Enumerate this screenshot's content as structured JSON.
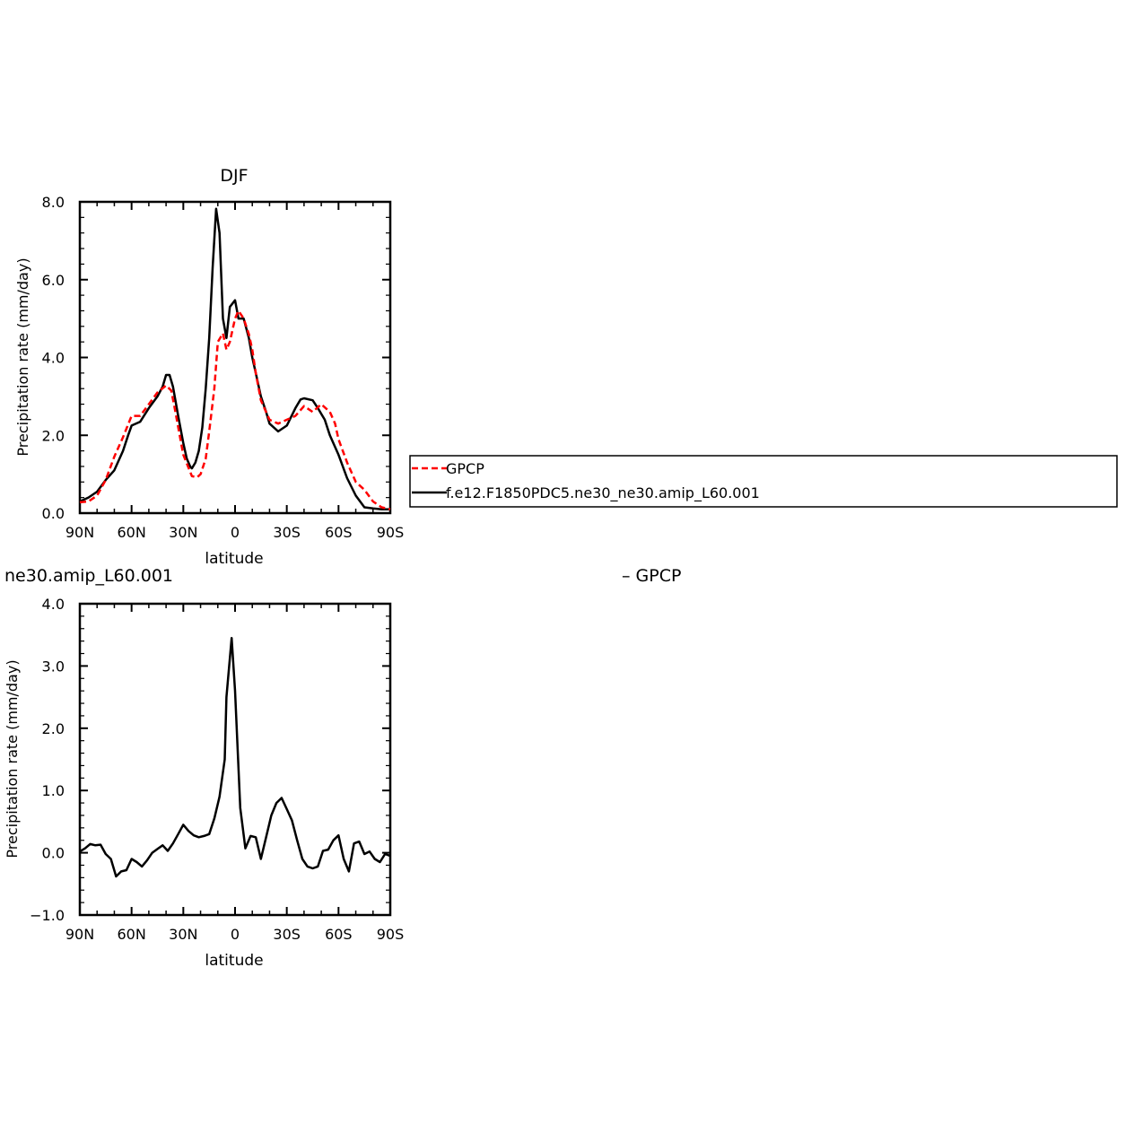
{
  "chart_data": [
    {
      "type": "line",
      "title": "DJF",
      "xlabel": "latitude",
      "ylabel": "Precipitation rate (mm/day)",
      "xlim": [
        90,
        -90
      ],
      "ylim": [
        0,
        8
      ],
      "xticks": [
        90,
        60,
        30,
        0,
        -30,
        -60,
        -90
      ],
      "xtick_labels": [
        "90N",
        "60N",
        "30N",
        "0",
        "30S",
        "60S",
        "90S"
      ],
      "yticks": [
        0,
        2,
        4,
        6,
        8
      ],
      "ytick_labels": [
        "0.0",
        "2.0",
        "4.0",
        "6.0",
        "8.0"
      ],
      "legend": {
        "placement": "right",
        "entries": [
          "GPCP",
          "f.e12.F1850PDC5.ne30_ne30.amip_L60.001"
        ]
      },
      "series": [
        {
          "name": "GPCP",
          "color": "#ff0000",
          "dash": true,
          "x": [
            90,
            85,
            80,
            75,
            70,
            65,
            60,
            55,
            50,
            45,
            40,
            37,
            35,
            30,
            25,
            22,
            20,
            17,
            15,
            12,
            10,
            7,
            5,
            3,
            0,
            -2,
            -5,
            -8,
            -10,
            -12,
            -15,
            -20,
            -25,
            -30,
            -35,
            -40,
            -45,
            -50,
            -55,
            -58,
            -60,
            -65,
            -70,
            -75,
            -80,
            -85,
            -90
          ],
          "y": [
            0.28,
            0.3,
            0.45,
            0.85,
            1.45,
            1.95,
            2.5,
            2.5,
            2.8,
            3.1,
            3.28,
            3.15,
            2.7,
            1.5,
            0.95,
            0.92,
            1.0,
            1.4,
            2.1,
            3.2,
            4.4,
            4.62,
            4.2,
            4.4,
            5.0,
            5.2,
            5.0,
            4.6,
            4.2,
            3.6,
            2.9,
            2.4,
            2.3,
            2.4,
            2.5,
            2.75,
            2.6,
            2.8,
            2.6,
            2.3,
            1.9,
            1.3,
            0.8,
            0.6,
            0.3,
            0.15,
            0.1
          ]
        },
        {
          "name": "f.e12.F1850PDC5.ne30_ne30.amip_L60.001",
          "color": "#000000",
          "dash": false,
          "x": [
            90,
            85,
            80,
            75,
            70,
            65,
            62,
            60,
            55,
            50,
            45,
            42,
            40,
            38,
            36,
            33,
            30,
            28,
            26,
            25,
            23,
            21,
            19,
            17,
            15,
            13,
            11,
            9,
            7,
            5,
            3,
            0,
            -2,
            -5,
            -8,
            -10,
            -12,
            -15,
            -18,
            -20,
            -25,
            -30,
            -35,
            -38,
            -40,
            -45,
            -48,
            -50,
            -52,
            -55,
            -60,
            -65,
            -70,
            -75,
            -80,
            -85,
            -90
          ],
          "y": [
            0.3,
            0.4,
            0.55,
            0.85,
            1.1,
            1.6,
            2.0,
            2.25,
            2.35,
            2.7,
            3.0,
            3.25,
            3.55,
            3.55,
            3.25,
            2.5,
            1.8,
            1.4,
            1.2,
            1.15,
            1.3,
            1.6,
            2.2,
            3.2,
            4.5,
            6.3,
            7.82,
            7.2,
            5.0,
            4.5,
            5.3,
            5.47,
            5.0,
            5.0,
            4.5,
            4.0,
            3.6,
            3.0,
            2.6,
            2.3,
            2.1,
            2.25,
            2.7,
            2.92,
            2.95,
            2.9,
            2.7,
            2.55,
            2.4,
            2.0,
            1.5,
            0.9,
            0.45,
            0.15,
            0.12,
            0.1,
            0.1
          ]
        }
      ]
    },
    {
      "type": "line",
      "title": "ne30.amip_L60.001",
      "subtitle": "– GPCP",
      "xlabel": "latitude",
      "ylabel": "Precipitation rate (mm/day)",
      "xlim": [
        90,
        -90
      ],
      "ylim": [
        -1,
        4
      ],
      "xticks": [
        90,
        60,
        30,
        0,
        -30,
        -60,
        -90
      ],
      "xtick_labels": [
        "90N",
        "60N",
        "30N",
        "0",
        "30S",
        "60S",
        "90S"
      ],
      "yticks": [
        -1,
        0,
        1,
        2,
        3,
        4
      ],
      "ytick_labels": [
        "−1.0",
        "0.0",
        "1.0",
        "2.0",
        "3.0",
        "4.0"
      ],
      "series": [
        {
          "color": "#000000",
          "x": [
            90,
            87,
            84,
            81,
            78,
            75,
            72,
            69,
            66,
            63,
            60,
            57,
            54,
            51,
            48,
            45,
            42,
            39,
            36,
            33,
            30,
            27,
            24,
            21,
            18,
            15,
            12,
            9,
            6,
            5,
            2,
            0,
            -3,
            -6,
            -9,
            -12,
            -15,
            -18,
            -21,
            -24,
            -27,
            -30,
            -33,
            -36,
            -39,
            -42,
            -45,
            -48,
            -51,
            -54,
            -57,
            -60,
            -63,
            -66,
            -69,
            -72,
            -75,
            -78,
            -81,
            -84,
            -87,
            -90
          ],
          "y": [
            0.02,
            0.07,
            0.14,
            0.12,
            0.13,
            -0.02,
            -0.1,
            -0.38,
            -0.3,
            -0.28,
            -0.1,
            -0.15,
            -0.22,
            -0.12,
            0.0,
            0.06,
            0.12,
            0.03,
            0.15,
            0.3,
            0.45,
            0.35,
            0.28,
            0.25,
            0.27,
            0.3,
            0.55,
            0.9,
            1.5,
            2.5,
            3.45,
            2.6,
            0.72,
            0.07,
            0.27,
            0.25,
            -0.1,
            0.25,
            0.6,
            0.8,
            0.88,
            0.7,
            0.52,
            0.2,
            -0.1,
            -0.22,
            -0.25,
            -0.22,
            0.03,
            0.05,
            0.2,
            0.28,
            -0.1,
            -0.3,
            0.15,
            0.18,
            -0.02,
            0.02,
            -0.1,
            -0.15,
            -0.02,
            -0.05
          ]
        }
      ]
    }
  ]
}
